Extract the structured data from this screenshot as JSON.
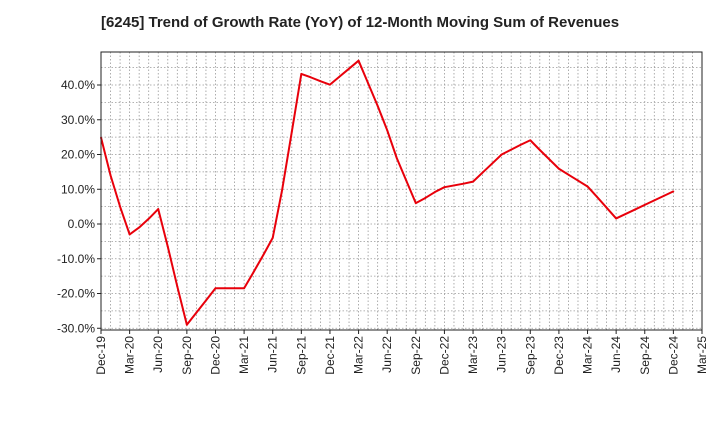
{
  "chart_data": {
    "type": "line",
    "title": "[6245]  Trend of Growth Rate (YoY) of 12-Month Moving Sum of Revenues",
    "xlabel": "",
    "ylabel": "",
    "x_tick_labels": [
      "Dec-19",
      "Mar-20",
      "Jun-20",
      "Sep-20",
      "Dec-20",
      "Mar-21",
      "Jun-21",
      "Sep-21",
      "Dec-21",
      "Mar-22",
      "Jun-22",
      "Sep-22",
      "Dec-22",
      "Mar-23",
      "Jun-23",
      "Sep-23",
      "Dec-23",
      "Mar-24",
      "Jun-24",
      "Sep-24",
      "Dec-24",
      "Mar-25"
    ],
    "y_tick_labels": [
      "40.0%",
      "30.0%",
      "20.0%",
      "10.0%",
      "0.0%",
      "-10.0%",
      "-20.0%",
      "-30.0%"
    ],
    "y_ticks": [
      40,
      30,
      20,
      10,
      0,
      -10,
      -20,
      -30
    ],
    "ylim": [
      -30.5,
      49.5
    ],
    "grid": true,
    "series": [
      {
        "color": "#e8000b",
        "x": [
          "Dec-19",
          "Jan-20",
          "Feb-20",
          "Mar-20",
          "Apr-20",
          "May-20",
          "Jun-20",
          "Jul-20",
          "Aug-20",
          "Sep-20",
          "Oct-20",
          "Nov-20",
          "Dec-20",
          "Jan-21",
          "Feb-21",
          "Mar-21",
          "Apr-21",
          "May-21",
          "Jun-21",
          "Jul-21",
          "Aug-21",
          "Sep-21",
          "Oct-21",
          "Nov-21",
          "Dec-21",
          "Jan-22",
          "Feb-22",
          "Mar-22",
          "Apr-22",
          "May-22",
          "Jun-22",
          "Jul-22",
          "Aug-22",
          "Sep-22",
          "Oct-22",
          "Nov-22",
          "Dec-22",
          "Jan-23",
          "Feb-23",
          "Mar-23",
          "Apr-23",
          "May-23",
          "Jun-23",
          "Jul-23",
          "Aug-23",
          "Sep-23",
          "Oct-23",
          "Nov-23",
          "Dec-23",
          "Jan-24",
          "Feb-24",
          "Mar-24",
          "Apr-24",
          "May-24",
          "Jun-24",
          "Jul-24",
          "Aug-24",
          "Sep-24",
          "Oct-24",
          "Nov-24",
          "Dec-24"
        ],
        "values": [
          24.9,
          14.0,
          5.0,
          -3.0,
          -1.0,
          1.5,
          4.3,
          -6.5,
          -18.0,
          -29.0,
          -25.5,
          -22.0,
          -18.5,
          -18.5,
          -18.5,
          -18.5,
          -13.8,
          -9.0,
          -4.0,
          10.0,
          26.5,
          43.2,
          42.2,
          41.1,
          40.1,
          42.4,
          44.7,
          47.0,
          40.5,
          34.0,
          27.0,
          19.0,
          12.5,
          6.0,
          7.5,
          9.2,
          10.6,
          11.1,
          11.6,
          12.2,
          14.8,
          17.4,
          20.0,
          21.4,
          22.8,
          24.1,
          21.3,
          18.6,
          15.9,
          14.2,
          12.5,
          10.8,
          7.8,
          4.7,
          1.6,
          2.9,
          4.2,
          5.5,
          6.8,
          8.1,
          9.4
        ]
      }
    ]
  }
}
